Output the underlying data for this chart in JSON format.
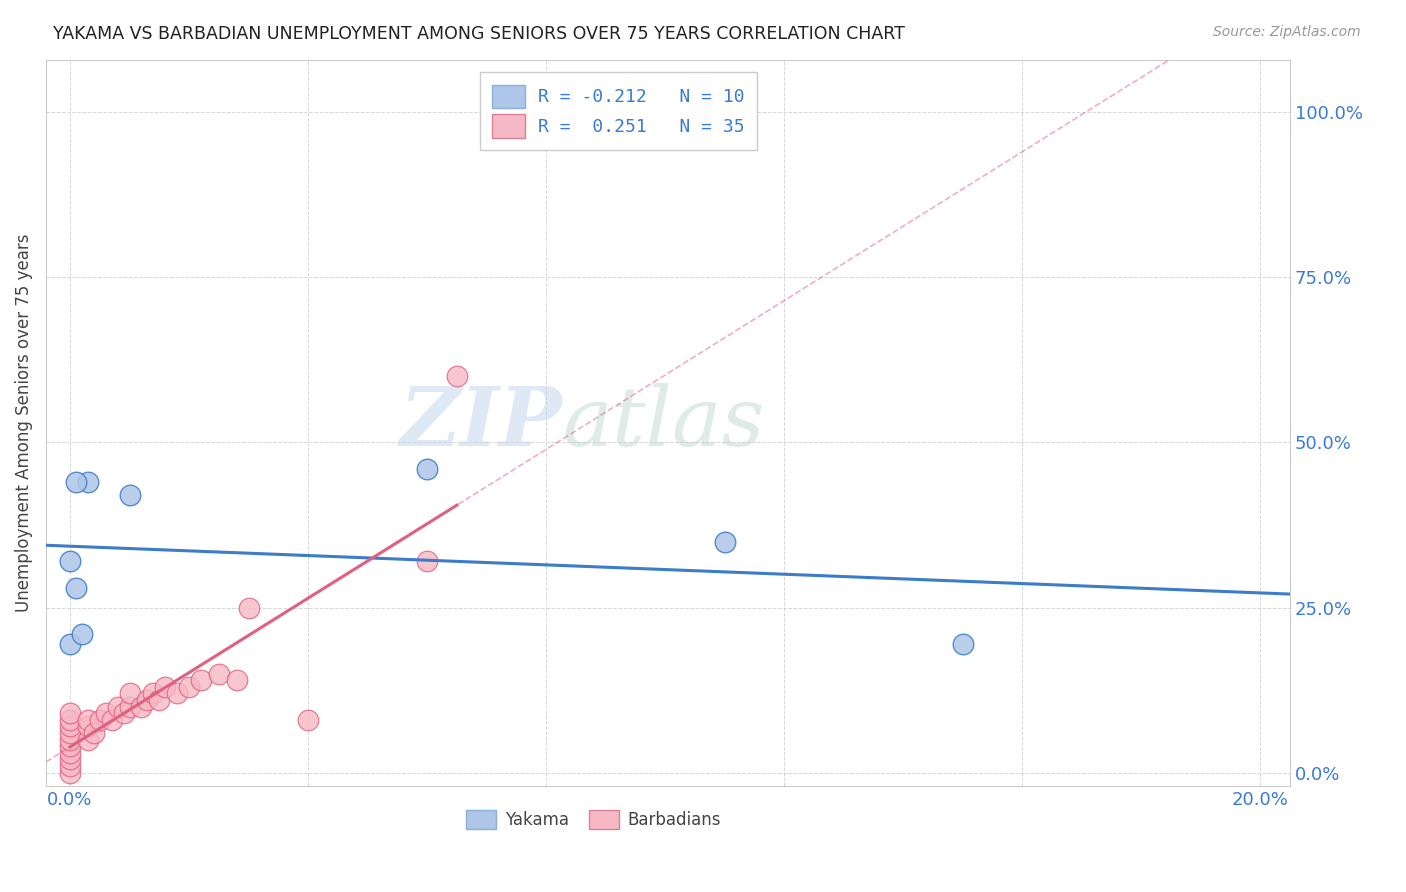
{
  "title": "YAKAMA VS BARBADIAN UNEMPLOYMENT AMONG SENIORS OVER 75 YEARS CORRELATION CHART",
  "source": "Source: ZipAtlas.com",
  "ylabel": "Unemployment Among Seniors over 75 years",
  "yakama_color": "#aec6e8",
  "barbadian_color": "#f5b8c4",
  "yakama_line_color": "#3d7cc9",
  "barbadian_line_color": "#e06080",
  "watermark_zip": "ZIP",
  "watermark_atlas": "atlas",
  "yakama_x": [
    0.003,
    0.01,
    0.001,
    0.0,
    0.001,
    0.0,
    0.06,
    0.11,
    0.15,
    0.002
  ],
  "yakama_y": [
    0.44,
    0.42,
    0.44,
    0.32,
    0.28,
    0.195,
    0.46,
    0.35,
    0.195,
    0.21
  ],
  "barbadian_x": [
    0.0,
    0.0,
    0.0,
    0.0,
    0.0,
    0.0,
    0.0,
    0.0,
    0.0,
    0.0,
    0.003,
    0.003,
    0.003,
    0.004,
    0.005,
    0.006,
    0.007,
    0.008,
    0.009,
    0.01,
    0.01,
    0.012,
    0.013,
    0.014,
    0.015,
    0.016,
    0.018,
    0.02,
    0.022,
    0.025,
    0.028,
    0.03,
    0.04,
    0.06,
    0.065
  ],
  "barbadian_y": [
    0.0,
    0.01,
    0.02,
    0.03,
    0.04,
    0.05,
    0.06,
    0.07,
    0.08,
    0.09,
    0.05,
    0.07,
    0.08,
    0.06,
    0.08,
    0.09,
    0.08,
    0.1,
    0.09,
    0.1,
    0.12,
    0.1,
    0.11,
    0.12,
    0.11,
    0.13,
    0.12,
    0.13,
    0.14,
    0.15,
    0.14,
    0.25,
    0.08,
    0.32,
    0.6
  ],
  "xmin": -0.004,
  "xmax": 0.205,
  "ymin": -0.02,
  "ymax": 1.08,
  "x_tick_positions": [
    0.0,
    0.04,
    0.08,
    0.12,
    0.16,
    0.2
  ],
  "y_tick_positions": [
    0.0,
    0.25,
    0.5,
    0.75,
    1.0
  ],
  "y_tick_labels": [
    "0.0%",
    "25.0%",
    "50.0%",
    "75.0%",
    "100.0%"
  ],
  "x_tick_labels": [
    "0.0%",
    "",
    "",
    "",
    "",
    "20.0%"
  ]
}
